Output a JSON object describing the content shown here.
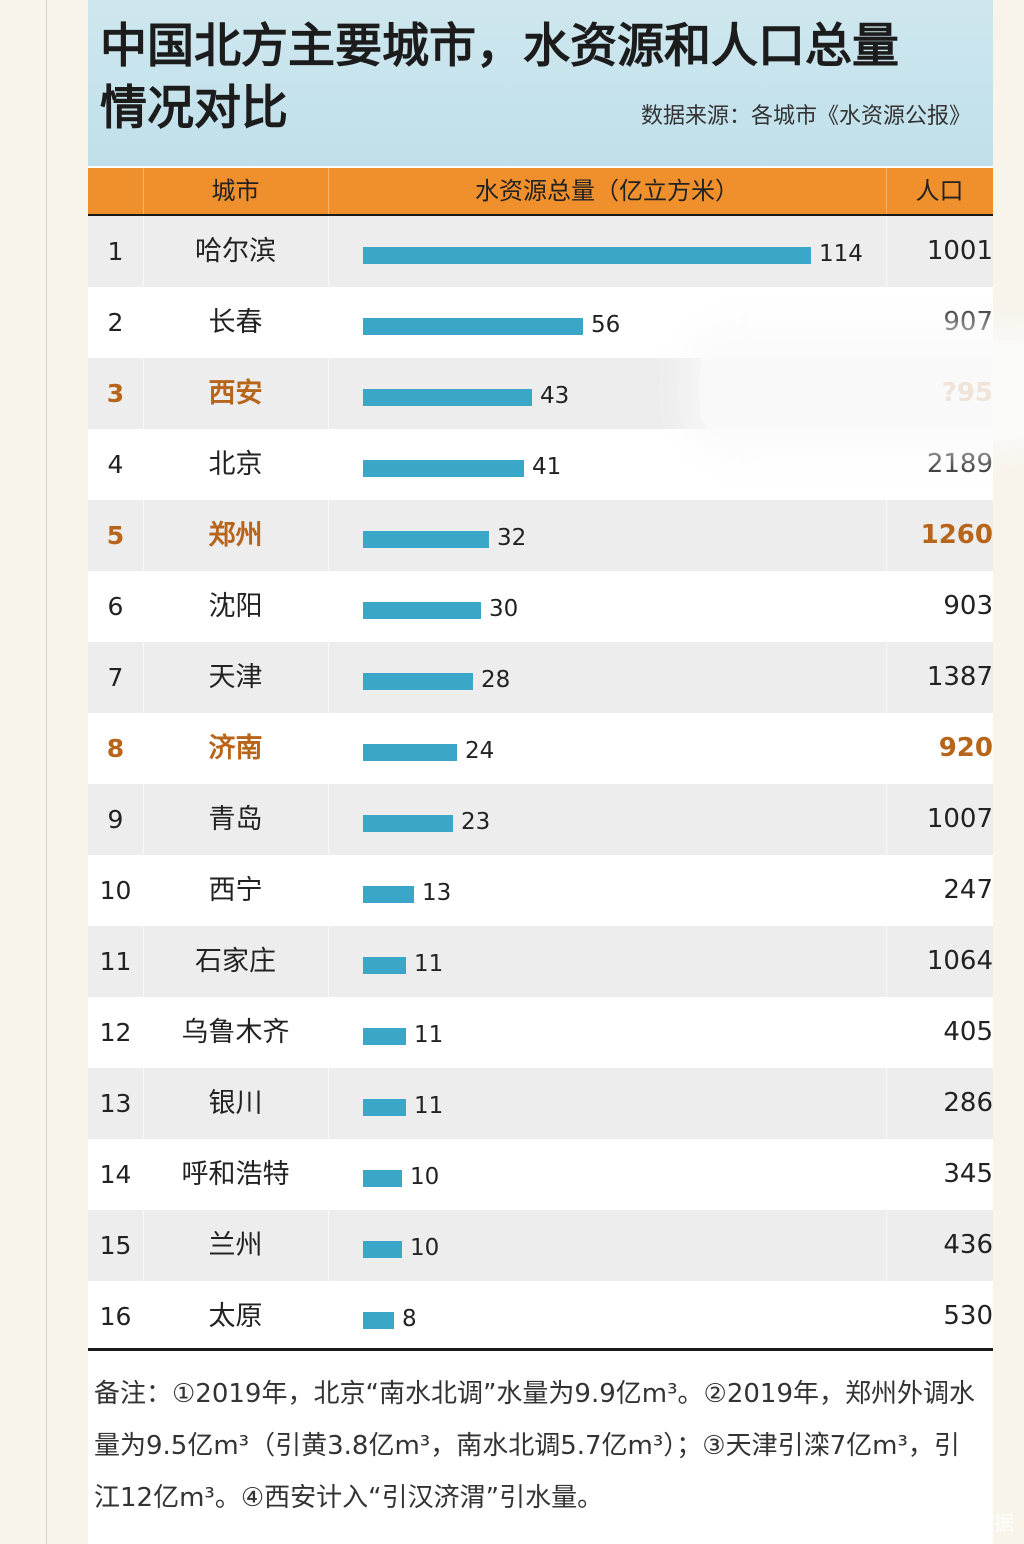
{
  "title_line1": "中国北方主要城市，水资源和人口总量",
  "title_line2": "情况对比",
  "source": "数据来源：各城市《水资源公报》",
  "columns": {
    "city": "城市",
    "water": "水资源总量（亿立方米）",
    "pop": "人口"
  },
  "note": "备注：①2019年，北京“南水北调”水量为9.9亿m³。②2019年，郑州外调水量为9.5亿m³（引黄3.8亿m³，南水北调5.7亿m³）；③天津引滦7亿m³，引江12亿m³。④西安计入“引汉济渭”引水量。",
  "watermark": "聚汇数据",
  "colors": {
    "bar": "#3aa6c8",
    "header": "#f0902d",
    "highlight": "#b7651a"
  },
  "rows": [
    {
      "rank": "1",
      "city": "哈尔滨",
      "value": "114",
      "pop": "1001",
      "hl": false
    },
    {
      "rank": "2",
      "city": "长春",
      "value": "56",
      "pop": "907",
      "hl": false
    },
    {
      "rank": "3",
      "city": "西安",
      "value": "43",
      "pop": "?95",
      "hl": true
    },
    {
      "rank": "4",
      "city": "北京",
      "value": "41",
      "pop": "2189",
      "hl": false
    },
    {
      "rank": "5",
      "city": "郑州",
      "value": "32",
      "pop": "1260",
      "hl": true
    },
    {
      "rank": "6",
      "city": "沈阳",
      "value": "30",
      "pop": "903",
      "hl": false
    },
    {
      "rank": "7",
      "city": "天津",
      "value": "28",
      "pop": "1387",
      "hl": false
    },
    {
      "rank": "8",
      "city": "济南",
      "value": "24",
      "pop": "920",
      "hl": true
    },
    {
      "rank": "9",
      "city": "青岛",
      "value": "23",
      "pop": "1007",
      "hl": false
    },
    {
      "rank": "10",
      "city": "西宁",
      "value": "13",
      "pop": "247",
      "hl": false
    },
    {
      "rank": "11",
      "city": "石家庄",
      "value": "11",
      "pop": "1064",
      "hl": false
    },
    {
      "rank": "12",
      "city": "乌鲁木齐",
      "value": "11",
      "pop": "405",
      "hl": false
    },
    {
      "rank": "13",
      "city": "银川",
      "value": "11",
      "pop": "286",
      "hl": false
    },
    {
      "rank": "14",
      "city": "呼和浩特",
      "value": "10",
      "pop": "345",
      "hl": false
    },
    {
      "rank": "15",
      "city": "兰州",
      "value": "10",
      "pop": "436",
      "hl": false
    },
    {
      "rank": "16",
      "city": "太原",
      "value": "8",
      "pop": "530",
      "hl": false
    }
  ],
  "chart_data": {
    "type": "bar",
    "title": "中国北方主要城市，水资源和人口总量情况对比",
    "xlabel": "",
    "ylabel": "水资源总量（亿立方米）",
    "categories": [
      "哈尔滨",
      "长春",
      "西安",
      "北京",
      "郑州",
      "沈阳",
      "天津",
      "济南",
      "青岛",
      "西宁",
      "石家庄",
      "乌鲁木齐",
      "银川",
      "呼和浩特",
      "兰州",
      "太原"
    ],
    "values": [
      114,
      56,
      43,
      41,
      32,
      30,
      28,
      24,
      23,
      13,
      11,
      11,
      11,
      10,
      10,
      8
    ],
    "ylim": [
      0,
      114
    ]
  }
}
